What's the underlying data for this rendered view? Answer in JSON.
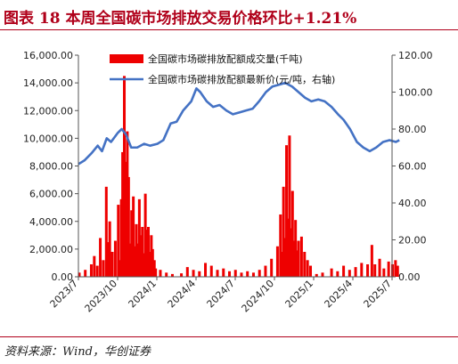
{
  "title": "图表 18    本周全国碳市场排放交易价格环比+1.21%",
  "source": "资料来源：Wind，华创证券",
  "colors": {
    "bars": "#ee0000",
    "line": "#4472c4",
    "title": "#b0001a"
  },
  "chart_data": {
    "type": "bar",
    "grid": false,
    "legend_placement": "top-center",
    "x_range": [
      "2023-07",
      "2025-07"
    ],
    "x_tick_labels": [
      "2023/7",
      "2023/10",
      "2024/1",
      "2024/4",
      "2024/7",
      "2024/10",
      "2025/1",
      "2025/4",
      "2025/7"
    ],
    "y_left": {
      "range": [
        0,
        16000
      ],
      "ticks": [
        "0.00",
        "2,000.00",
        "4,000.00",
        "6,000.00",
        "8,000.00",
        "10,000.00",
        "12,000.00",
        "14,000.00",
        "16,000.00"
      ]
    },
    "y_right": {
      "range": [
        0,
        120
      ],
      "ticks": [
        "0.00",
        "20.00",
        "40.00",
        "60.00",
        "80.00",
        "100.00",
        "120.00"
      ]
    },
    "series": [
      {
        "name": "全国碳市场碳排放配额成交量(千吨)",
        "type": "bar",
        "axis": "left",
        "points": [
          [
            "2023-07-03",
            300
          ],
          [
            "2023-07-17",
            500
          ],
          [
            "2023-07-31",
            900
          ],
          [
            "2023-08-07",
            1500
          ],
          [
            "2023-08-14",
            800
          ],
          [
            "2023-08-21",
            2800
          ],
          [
            "2023-08-28",
            1200
          ],
          [
            "2023-09-04",
            6500
          ],
          [
            "2023-09-08",
            2500
          ],
          [
            "2023-09-12",
            4000
          ],
          [
            "2023-09-18",
            1800
          ],
          [
            "2023-09-25",
            2600
          ],
          [
            "2023-10-02",
            5200
          ],
          [
            "2023-10-06",
            1200
          ],
          [
            "2023-10-09",
            5600
          ],
          [
            "2023-10-12",
            9000
          ],
          [
            "2023-10-16",
            14500
          ],
          [
            "2023-10-19",
            8300
          ],
          [
            "2023-10-23",
            10500
          ],
          [
            "2023-10-26",
            7200
          ],
          [
            "2023-10-30",
            2400
          ],
          [
            "2023-11-02",
            4800
          ],
          [
            "2023-11-06",
            5800
          ],
          [
            "2023-11-09",
            2200
          ],
          [
            "2023-11-13",
            3800
          ],
          [
            "2023-11-16",
            2400
          ],
          [
            "2023-11-20",
            5600
          ],
          [
            "2023-11-24",
            3000
          ],
          [
            "2023-11-27",
            3600
          ],
          [
            "2023-11-30",
            1700
          ],
          [
            "2023-12-04",
            6000
          ],
          [
            "2023-12-07",
            3400
          ],
          [
            "2023-12-11",
            3600
          ],
          [
            "2023-12-14",
            1800
          ],
          [
            "2023-12-18",
            3000
          ],
          [
            "2023-12-21",
            2000
          ],
          [
            "2023-12-25",
            1200
          ],
          [
            "2023-12-28",
            600
          ],
          [
            "2024-01-08",
            500
          ],
          [
            "2024-01-22",
            300
          ],
          [
            "2024-02-05",
            200
          ],
          [
            "2024-02-26",
            250
          ],
          [
            "2024-03-11",
            700
          ],
          [
            "2024-03-25",
            500
          ],
          [
            "2024-04-08",
            400
          ],
          [
            "2024-04-22",
            1000
          ],
          [
            "2024-05-06",
            800
          ],
          [
            "2024-05-20",
            500
          ],
          [
            "2024-06-03",
            600
          ],
          [
            "2024-06-17",
            400
          ],
          [
            "2024-07-01",
            500
          ],
          [
            "2024-07-15",
            300
          ],
          [
            "2024-07-29",
            400
          ],
          [
            "2024-08-12",
            300
          ],
          [
            "2024-08-26",
            500
          ],
          [
            "2024-09-09",
            800
          ],
          [
            "2024-09-23",
            1300
          ],
          [
            "2024-10-07",
            2200
          ],
          [
            "2024-10-14",
            4500
          ],
          [
            "2024-10-18",
            1800
          ],
          [
            "2024-10-21",
            6500
          ],
          [
            "2024-10-25",
            2800
          ],
          [
            "2024-10-28",
            9500
          ],
          [
            "2024-10-31",
            4200
          ],
          [
            "2024-11-04",
            10200
          ],
          [
            "2024-11-07",
            3500
          ],
          [
            "2024-11-11",
            6200
          ],
          [
            "2024-11-14",
            2600
          ],
          [
            "2024-11-18",
            4100
          ],
          [
            "2024-11-21",
            1900
          ],
          [
            "2024-11-25",
            2600
          ],
          [
            "2024-12-02",
            2900
          ],
          [
            "2024-12-09",
            1800
          ],
          [
            "2024-12-16",
            1200
          ],
          [
            "2024-12-23",
            800
          ],
          [
            "2025-01-06",
            200
          ],
          [
            "2025-01-20",
            300
          ],
          [
            "2025-02-10",
            600
          ],
          [
            "2025-02-24",
            400
          ],
          [
            "2025-03-10",
            800
          ],
          [
            "2025-03-24",
            500
          ],
          [
            "2025-04-07",
            700
          ],
          [
            "2025-04-21",
            1000
          ],
          [
            "2025-05-05",
            900
          ],
          [
            "2025-05-15",
            2300
          ],
          [
            "2025-05-22",
            900
          ],
          [
            "2025-06-02",
            1300
          ],
          [
            "2025-06-12",
            600
          ],
          [
            "2025-06-23",
            1100
          ],
          [
            "2025-07-02",
            900
          ],
          [
            "2025-07-09",
            1200
          ],
          [
            "2025-07-14",
            800
          ]
        ]
      },
      {
        "name": "全国碳市场碳排放配额最新价(元/吨，右轴)",
        "type": "line",
        "axis": "right",
        "points": [
          [
            "2023-07-01",
            61
          ],
          [
            "2023-07-15",
            63
          ],
          [
            "2023-08-01",
            67
          ],
          [
            "2023-08-15",
            71
          ],
          [
            "2023-08-25",
            68
          ],
          [
            "2023-09-05",
            75
          ],
          [
            "2023-09-15",
            73
          ],
          [
            "2023-10-01",
            78
          ],
          [
            "2023-10-10",
            80
          ],
          [
            "2023-10-20",
            77
          ],
          [
            "2023-11-01",
            70
          ],
          [
            "2023-11-15",
            70
          ],
          [
            "2023-12-01",
            72
          ],
          [
            "2023-12-15",
            71
          ],
          [
            "2024-01-01",
            72
          ],
          [
            "2024-01-15",
            74
          ],
          [
            "2024-02-01",
            83
          ],
          [
            "2024-02-15",
            84
          ],
          [
            "2024-03-01",
            90
          ],
          [
            "2024-03-20",
            95
          ],
          [
            "2024-04-01",
            102
          ],
          [
            "2024-04-10",
            100
          ],
          [
            "2024-04-25",
            95
          ],
          [
            "2024-05-10",
            92
          ],
          [
            "2024-05-25",
            93
          ],
          [
            "2024-06-10",
            90
          ],
          [
            "2024-06-25",
            88
          ],
          [
            "2024-07-10",
            89
          ],
          [
            "2024-07-25",
            90
          ],
          [
            "2024-08-10",
            91
          ],
          [
            "2024-08-25",
            95
          ],
          [
            "2024-09-10",
            100
          ],
          [
            "2024-09-25",
            103
          ],
          [
            "2024-10-10",
            104
          ],
          [
            "2024-10-25",
            105
          ],
          [
            "2024-11-10",
            103
          ],
          [
            "2024-11-25",
            100
          ],
          [
            "2024-12-10",
            97
          ],
          [
            "2024-12-25",
            95
          ],
          [
            "2025-01-10",
            96
          ],
          [
            "2025-01-25",
            95
          ],
          [
            "2025-02-10",
            92
          ],
          [
            "2025-02-25",
            88
          ],
          [
            "2025-03-10",
            85
          ],
          [
            "2025-03-25",
            80
          ],
          [
            "2025-04-10",
            73
          ],
          [
            "2025-04-25",
            70
          ],
          [
            "2025-05-10",
            68
          ],
          [
            "2025-05-25",
            70
          ],
          [
            "2025-06-10",
            73
          ],
          [
            "2025-06-25",
            74
          ],
          [
            "2025-07-10",
            73
          ],
          [
            "2025-07-18",
            74
          ]
        ]
      }
    ]
  }
}
